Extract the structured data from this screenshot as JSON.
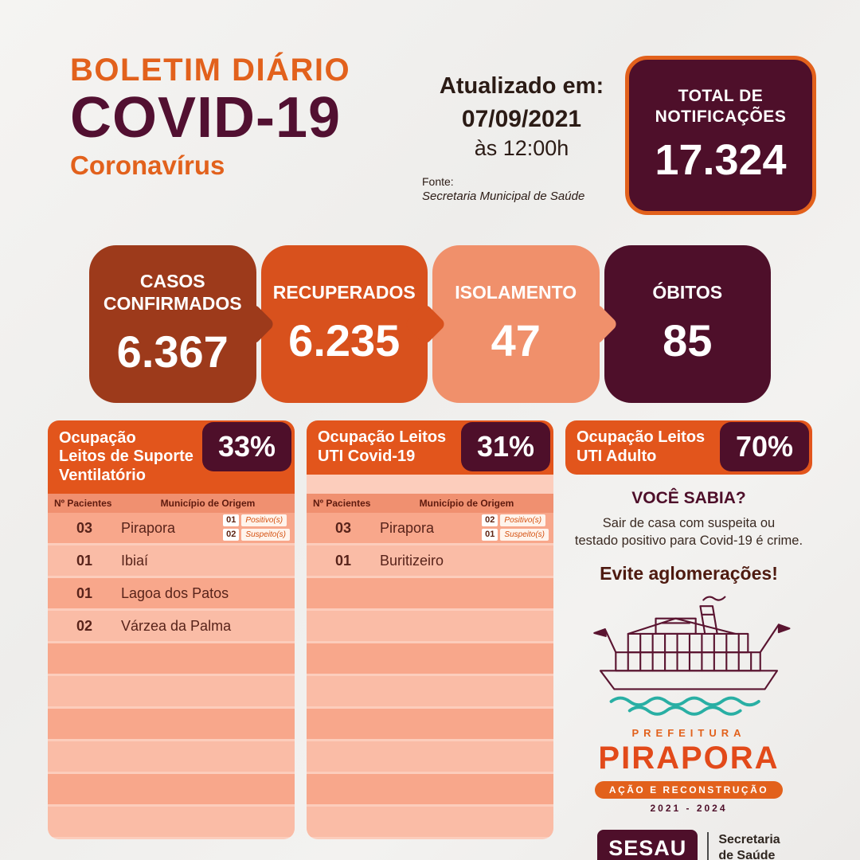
{
  "colors": {
    "orange": "#E2611C",
    "maroon": "#4E0F2A",
    "rust": "#9D3A1B",
    "orange_red": "#D8511D",
    "salmon": "#F0906B",
    "panel_bg": "#FCCDBC",
    "teal_wave": "#29AFA4"
  },
  "header": {
    "boletim": "BOLETIM DIÁRIO",
    "covid": "COVID-19",
    "corona": "Coronavírus"
  },
  "updated": {
    "label": "Atualizado em:",
    "date": "07/09/2021",
    "time": "às 12:00h",
    "fonte_label": "Fonte:",
    "fonte_value": "Secretaria Municipal de Saúde"
  },
  "total": {
    "label": "TOTAL DE\nNOTIFICAÇÕES",
    "value": "17.324"
  },
  "stats": [
    {
      "label": "CASOS\nCONFIRMADOS",
      "value": "6.367",
      "color": "#9D3A1B"
    },
    {
      "label": "RECUPERADOS",
      "value": "6.235",
      "color": "#D8511D"
    },
    {
      "label": "ISOLAMENTO",
      "value": "47",
      "color": "#F0906B"
    },
    {
      "label": "ÓBITOS",
      "value": "85",
      "color": "#4E0F2A"
    }
  ],
  "panels": [
    {
      "title": "Ocupação\nLeitos de Suporte\nVentilatório",
      "percent": "33%",
      "columns": {
        "count": "Nº Pacientes",
        "origin": "Município de Origem"
      },
      "rows": [
        {
          "count": "03",
          "city": "Pirapora",
          "badges": [
            {
              "num": "01",
              "label": "Positivo(s)"
            },
            {
              "num": "02",
              "label": "Suspeito(s)"
            }
          ]
        },
        {
          "count": "01",
          "city": "Ibiaí"
        },
        {
          "count": "01",
          "city": "Lagoa dos Patos"
        },
        {
          "count": "02",
          "city": "Várzea da Palma"
        }
      ],
      "empty_rows": 6
    },
    {
      "title": "Ocupação Leitos\nUTI Covid-19",
      "percent": "31%",
      "columns": {
        "count": "Nº Pacientes",
        "origin": "Município de Origem"
      },
      "rows": [
        {
          "count": "03",
          "city": "Pirapora",
          "badges": [
            {
              "num": "02",
              "label": "Positivo(s)"
            },
            {
              "num": "01",
              "label": "Suspeito(s)"
            }
          ]
        },
        {
          "count": "01",
          "city": "Buritizeiro"
        }
      ],
      "empty_rows": 8
    },
    {
      "title": "Ocupação Leitos\nUTI Adulto",
      "percent": "70%"
    }
  ],
  "info": {
    "sabia_title": "VOCÊ SABIA?",
    "sabia_text": "Sair de casa com suspeita ou\ntestado positivo para Covid-19 é crime.",
    "warning": "Evite aglomerações!",
    "prefeitura": "PREFEITURA",
    "city": "PIRAPORA",
    "ribbon": "AÇÃO E RECONSTRUÇÃO",
    "years": "2021 - 2024"
  },
  "sesau": {
    "name": "SESAU",
    "dept": "Secretaria\nde Saúde"
  }
}
